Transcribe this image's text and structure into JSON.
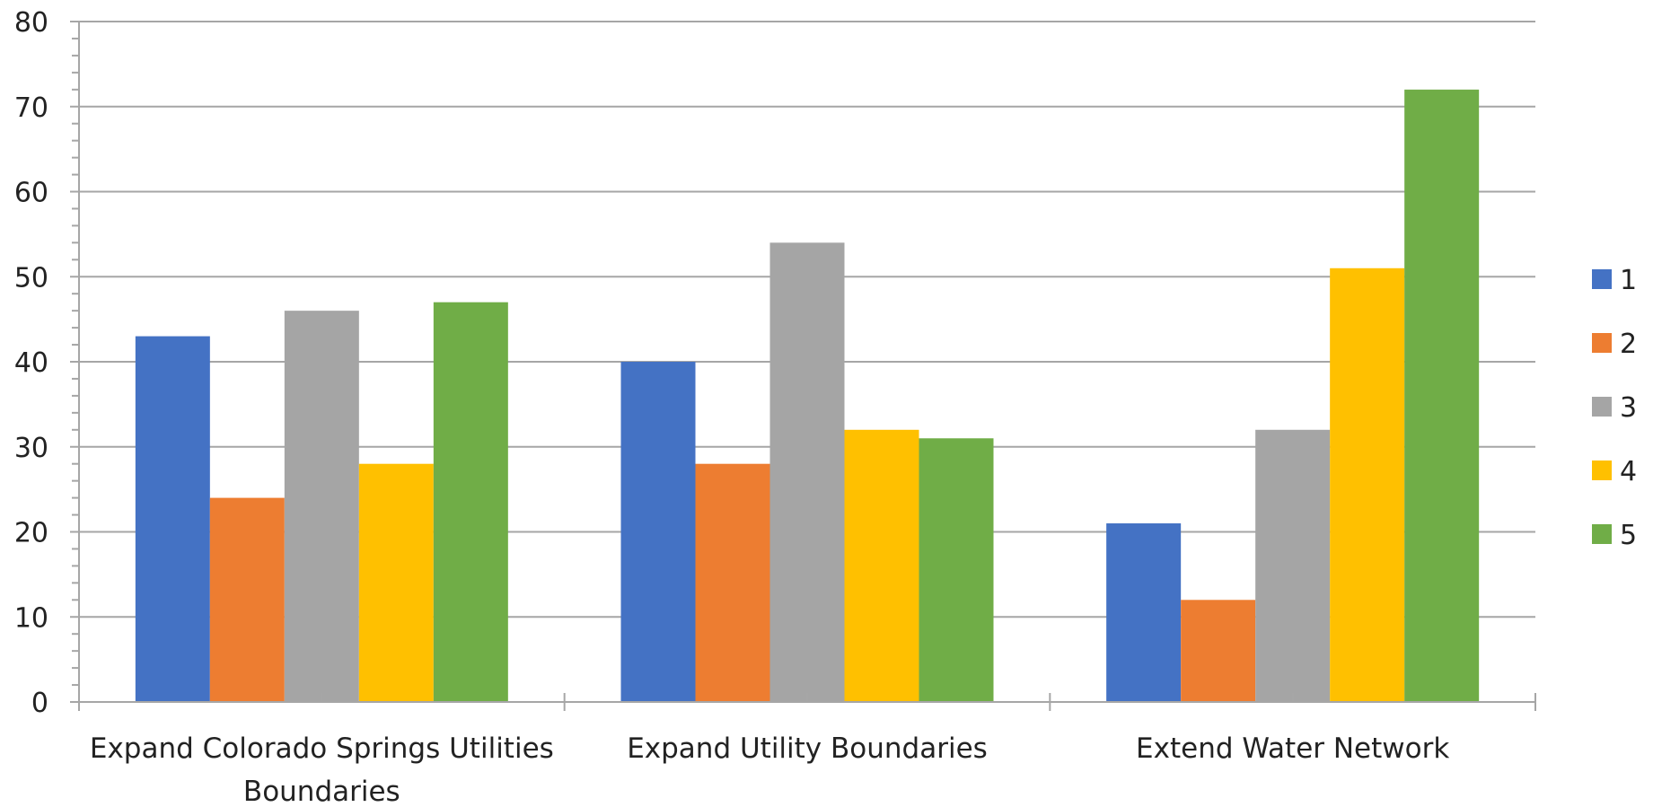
{
  "chart_data": {
    "type": "bar",
    "title": "",
    "xlabel": "",
    "ylabel": "",
    "categories": [
      [
        "Expand Colorado Springs Utilities",
        "Boundaries"
      ],
      [
        "Expand Utility Boundaries"
      ],
      [
        "Extend Water Network"
      ]
    ],
    "series": [
      {
        "name": "1",
        "color": "#4472C4",
        "values": [
          43,
          40,
          21
        ]
      },
      {
        "name": "2",
        "color": "#ED7D31",
        "values": [
          24,
          28,
          12
        ]
      },
      {
        "name": "3",
        "color": "#A5A5A5",
        "values": [
          46,
          54,
          32
        ]
      },
      {
        "name": "4",
        "color": "#FFC000",
        "values": [
          28,
          32,
          51
        ]
      },
      {
        "name": "5",
        "color": "#70AD47",
        "values": [
          47,
          31,
          72
        ]
      }
    ],
    "ylim": [
      0,
      80
    ],
    "yticks": [
      0,
      10,
      20,
      30,
      40,
      50,
      60,
      70,
      80
    ],
    "grid": true,
    "legend": "right"
  }
}
